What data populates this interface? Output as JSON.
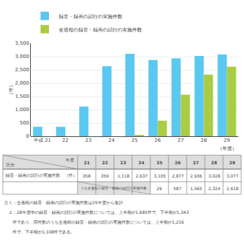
{
  "chart_data": {
    "type": "bar",
    "categories": [
      "平成 21",
      "22",
      "23",
      "24",
      "25",
      "26",
      "27",
      "28",
      "29"
    ],
    "series": [
      {
        "name": "録音・録画の試行の実施件数",
        "color": "#5BC8F0",
        "values": [
          358,
          359,
          1118,
          2637,
          3105,
          2877,
          2936,
          3028,
          3077
        ]
      },
      {
        "name": "全過程の録音・録画の試行の実施件数",
        "color": "#AACC44",
        "values": [
          null,
          null,
          null,
          null,
          29,
          587,
          1565,
          2324,
          2618
        ]
      }
    ],
    "ylim": [
      0,
      3500
    ],
    "yticks": [
      0,
      500,
      {
        "value": 1000,
        "label": "1,000"
      },
      {
        "value": 1500,
        "label": "1,500"
      },
      {
        "value": 2000,
        "label": "2,000"
      },
      {
        "value": 2500,
        "label": "2,500"
      },
      {
        "value": 3000,
        "label": "3,000"
      },
      {
        "value": 3500,
        "label": "3,500"
      }
    ],
    "ylabel": "（件）",
    "xlabel": "（年度）",
    "grid": true,
    "legend": "upper left",
    "table": {
      "corner": [
        "年度",
        "区分"
      ],
      "columns": [
        "21",
        "22",
        "23",
        "24",
        "25",
        "26",
        "27",
        "28",
        "29"
      ],
      "rows": [
        {
          "label": "録音・録画の試行の実施件数　（件）",
          "values": [
            "358",
            "359",
            "1,118",
            "2,637",
            "3,105",
            "2,877",
            "2,936",
            "3,028",
            "3,077"
          ]
        },
        {
          "label": "うち全過程の録音・録画の試行の実施件数",
          "values": [
            null,
            null,
            null,
            null,
            "29",
            "587",
            "1,565",
            "2,324",
            "2,618"
          ]
        }
      ]
    },
    "annotations": [
      "注１：全過程の録音・録画の試行の実施件数は25年度から集計",
      "　２：28年度中の録音・録画の試行の実施件数については、上半期が1,685件で、下半期が1,343",
      "　　件であり、同件数のうち全過程の録音・録画の試行の実施件数については、上半期が1,216",
      "　　件で、下半期が1,108件である。"
    ]
  }
}
